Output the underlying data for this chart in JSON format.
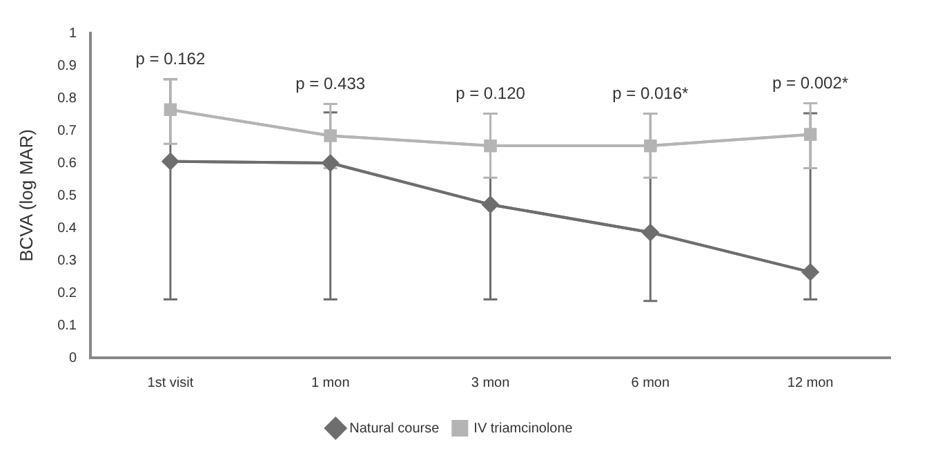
{
  "chart_data": {
    "type": "line",
    "ylabel": "BCVA (log MAR)",
    "categories": [
      "1st visit",
      "1 mon",
      "3 mon",
      "6 mon",
      "12 mon"
    ],
    "series": [
      {
        "name": "Natural course",
        "color": "#6e6e6e",
        "marker": "diamond",
        "values": [
          0.605,
          0.6,
          0.472,
          0.386,
          0.264
        ],
        "errors": [
          [
            0.18,
            0.858
          ],
          [
            0.18,
            0.756
          ],
          [
            0.18,
            0.752
          ],
          [
            0.175,
            0.752
          ],
          [
            0.18,
            0.753
          ]
        ]
      },
      {
        "name": "IV triamcinolone",
        "color": "#b4b4b4",
        "marker": "square",
        "values": [
          0.764,
          0.684,
          0.653,
          0.653,
          0.688
        ],
        "errors": [
          [
            0.659,
            0.858
          ],
          [
            0.584,
            0.782
          ],
          [
            0.555,
            0.752
          ],
          [
            0.555,
            0.752
          ],
          [
            0.584,
            0.784
          ]
        ]
      }
    ],
    "ylim": [
      0,
      1
    ],
    "yticks": [
      0,
      0.1,
      0.2,
      0.3,
      0.4,
      0.5,
      0.6,
      0.7,
      0.8,
      0.9,
      1
    ],
    "grid": false,
    "legend": "bottom",
    "line_style": "solid",
    "annotations": [
      "p = 0.162",
      "p = 0.433",
      "p = 0.120",
      "p = 0.016*",
      "p = 0.002*"
    ]
  }
}
